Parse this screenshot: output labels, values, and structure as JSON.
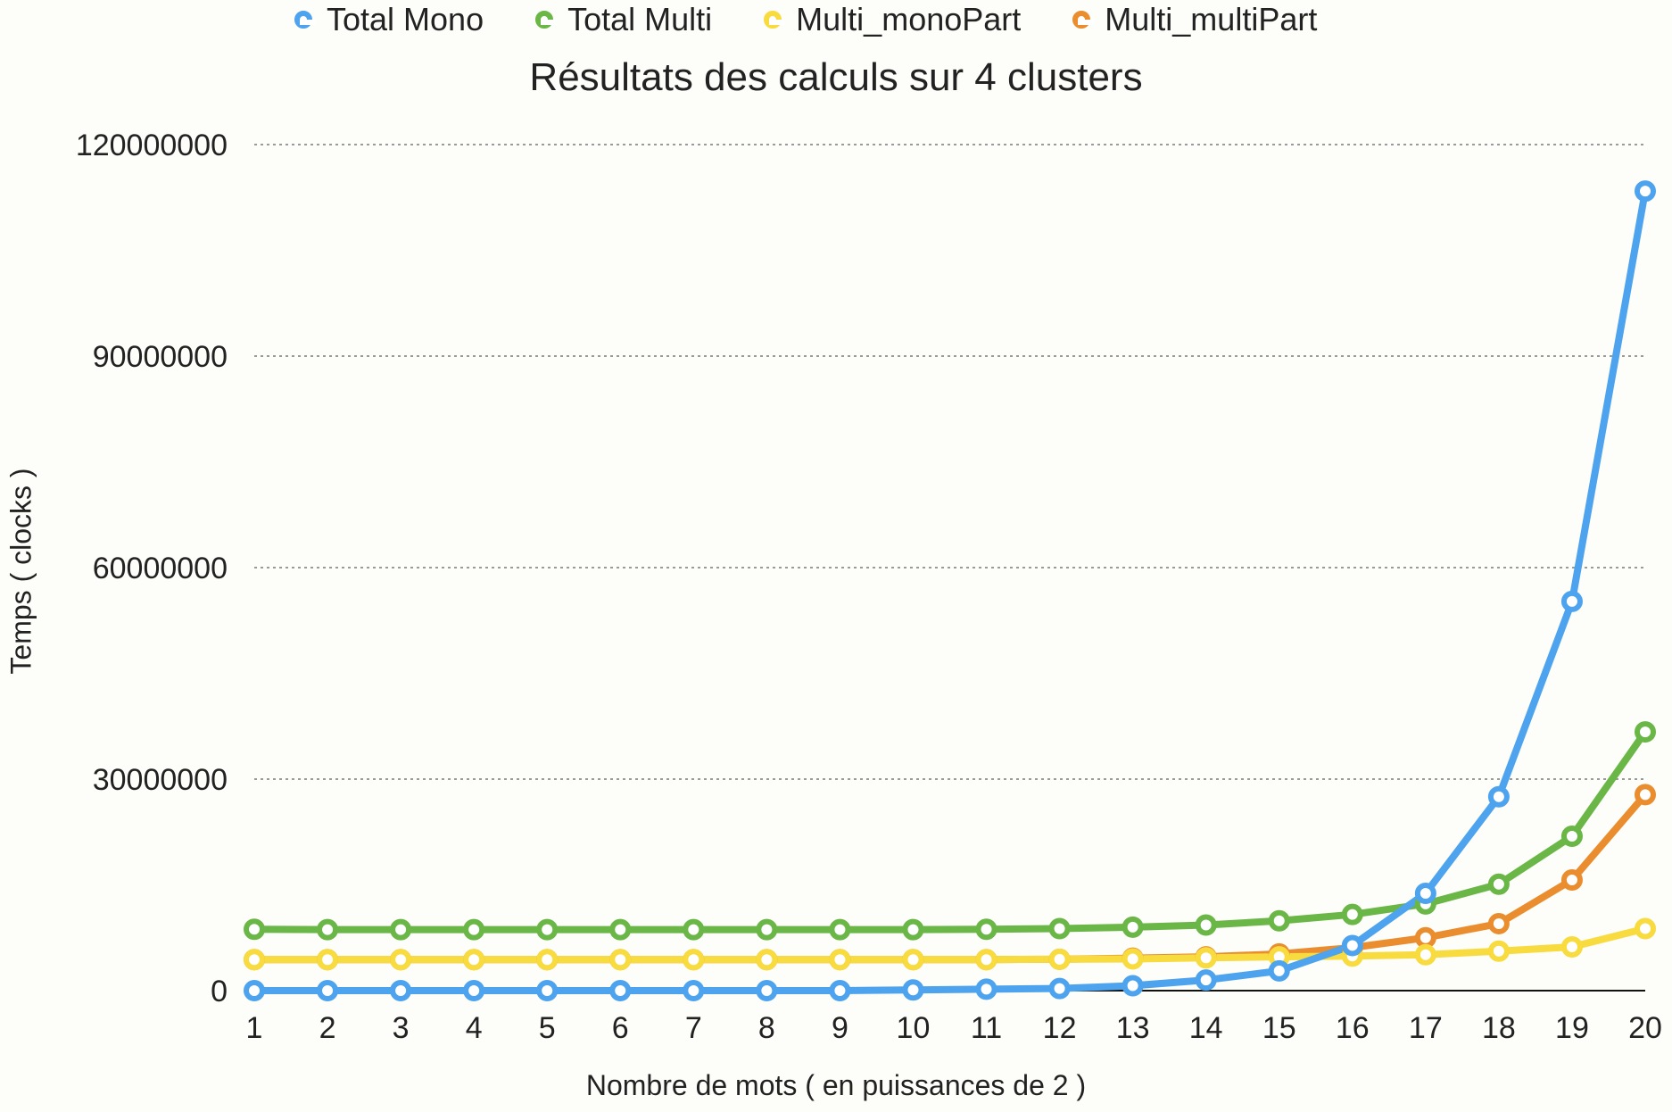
{
  "chart_data": {
    "type": "line",
    "title": "Résultats des calculs sur 4 clusters",
    "xlabel": "Nombre de mots ( en puissances de 2 )",
    "ylabel": "Temps ( clocks )",
    "categories": [
      "1",
      "2",
      "3",
      "4",
      "5",
      "6",
      "7",
      "8",
      "9",
      "10",
      "11",
      "12",
      "13",
      "14",
      "15",
      "16",
      "17",
      "18",
      "19",
      "20"
    ],
    "y_ticks": [
      "0",
      "30000000",
      "60000000",
      "90000000",
      "120000000"
    ],
    "ylim": [
      0,
      120000000
    ],
    "grid": "horizontal-dotted",
    "legend_position": "top",
    "series": [
      {
        "name": "Total Mono",
        "color": "#4da3ee",
        "values": [
          0,
          0,
          0,
          0,
          0,
          0,
          0,
          0,
          0,
          100000,
          200000,
          300000,
          700000,
          1500000,
          2800000,
          6400000,
          13800000,
          27500000,
          55200000,
          113400000
        ]
      },
      {
        "name": "Total Multi",
        "color": "#6ab747",
        "values": [
          8700000,
          8650000,
          8650000,
          8650000,
          8650000,
          8650000,
          8650000,
          8650000,
          8650000,
          8650000,
          8700000,
          8800000,
          9000000,
          9300000,
          9900000,
          10800000,
          12300000,
          15100000,
          21900000,
          36700000
        ]
      },
      {
        "name": "Multi_monoPart",
        "color": "#f8db3e",
        "values": [
          4400000,
          4400000,
          4400000,
          4400000,
          4400000,
          4400000,
          4400000,
          4400000,
          4400000,
          4400000,
          4400000,
          4450000,
          4500000,
          4650000,
          4800000,
          4900000,
          5100000,
          5600000,
          6200000,
          8800000
        ]
      },
      {
        "name": "Multi_multiPart",
        "color": "#ea8d2f",
        "values": [
          4400000,
          4400000,
          4400000,
          4400000,
          4400000,
          4400000,
          4400000,
          4400000,
          4400000,
          4400000,
          4400000,
          4450000,
          4600000,
          4800000,
          5200000,
          6100000,
          7500000,
          9500000,
          15700000,
          27800000
        ]
      }
    ]
  }
}
